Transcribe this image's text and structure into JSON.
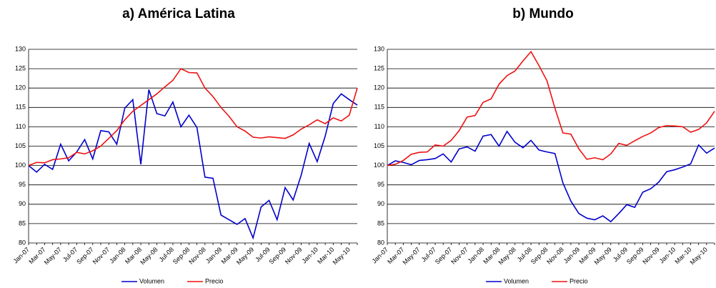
{
  "chart_data": [
    {
      "type": "line",
      "title": "a) América Latina",
      "categories": [
        "Jan-07",
        null,
        "Mar-07",
        null,
        "May-07",
        null,
        "Jul-07",
        null,
        "Sep-07",
        null,
        "Nov-07",
        null,
        "Jan-08",
        null,
        "Mar-08",
        null,
        "May-08",
        null,
        "Jul-08",
        null,
        "Sep-08",
        null,
        "Nov-08",
        null,
        "Jan-09",
        null,
        "Mar-09",
        null,
        "May-09",
        null,
        "Jul-09",
        null,
        "Sep-09",
        null,
        "Nov-09",
        null,
        "Jan-10",
        null,
        "Mar-10",
        null,
        "May-10",
        null
      ],
      "series": [
        {
          "name": "Volumen",
          "color": "#0000cc",
          "values": [
            100,
            98.3,
            100.3,
            99,
            105.5,
            101.2,
            103.5,
            106.7,
            101.7,
            109,
            108.7,
            105.5,
            114.8,
            117,
            100.3,
            119.6,
            113.4,
            112.8,
            116.4,
            110,
            113,
            109.8,
            97,
            96.7,
            87.2,
            86,
            84.8,
            86.3,
            81.3,
            89.3,
            91,
            86,
            94.3,
            91.1,
            97.5,
            105.7,
            101,
            107.6,
            116,
            118.5,
            117,
            115.6
          ]
        },
        {
          "name": "Precio",
          "color": "#ee1111",
          "values": [
            100,
            100.8,
            100.7,
            101.5,
            101.7,
            102,
            103.4,
            103,
            103.8,
            105,
            107,
            109,
            111.8,
            114,
            115.5,
            117,
            118.5,
            120.3,
            122,
            125,
            124,
            123.9,
            120,
            117.8,
            115,
            112.7,
            110,
            108.9,
            107.3,
            107.1,
            107.4,
            107.2,
            107,
            107.9,
            109.4,
            110.5,
            111.8,
            110.8,
            112.3,
            111.5,
            113,
            120
          ]
        }
      ],
      "ylim": [
        80,
        130
      ],
      "yticks": [
        80,
        85,
        90,
        95,
        100,
        105,
        110,
        115,
        120,
        125,
        130
      ],
      "grid": true,
      "legend": "bottom"
    },
    {
      "type": "line",
      "title": "b) Mundo",
      "categories": [
        "Jan-07",
        null,
        "Mar-07",
        null,
        "May-07",
        null,
        "Jul-07",
        null,
        "Sep-07",
        null,
        "Nov-07",
        null,
        "Jan-08",
        null,
        "Mar-08",
        null,
        "May-08",
        null,
        "Jul-08",
        null,
        "Sep-08",
        null,
        "Nov-08",
        null,
        "Jan-09",
        null,
        "Mar-09",
        null,
        "May-09",
        null,
        "Jul-09",
        null,
        "Sep-09",
        null,
        "Nov-09",
        null,
        "Jan-10",
        null,
        "Mar-10",
        null,
        "May-10",
        null
      ],
      "series": [
        {
          "name": "Volumen",
          "color": "#0000cc",
          "values": [
            100,
            101.2,
            100.8,
            100.2,
            101.3,
            101.5,
            101.8,
            103,
            100.9,
            104.3,
            104.8,
            103.7,
            107.6,
            108,
            105,
            108.8,
            106,
            104.6,
            106.5,
            104,
            103.5,
            103.1,
            95.5,
            90.8,
            87.6,
            86.4,
            86,
            87,
            85.5,
            87.6,
            89.9,
            89.2,
            93.1,
            94,
            95.7,
            98.4,
            98.9,
            99.6,
            100.4,
            105.3,
            103.2,
            104.5
          ]
        },
        {
          "name": "Precio",
          "color": "#ee1111",
          "values": [
            100,
            100.3,
            101.3,
            102.9,
            103.4,
            103.5,
            105.3,
            105,
            106.5,
            109,
            112.5,
            112.9,
            116.3,
            117.2,
            121,
            123.2,
            124.4,
            127,
            129.4,
            125.8,
            121.9,
            114.8,
            108.4,
            108.1,
            104.3,
            101.6,
            102,
            101.5,
            103,
            105.7,
            105.2,
            106.4,
            107.5,
            108.4,
            109.8,
            110.3,
            110.2,
            110,
            108.6,
            109.3,
            111,
            114
          ]
        }
      ],
      "ylim": [
        80,
        130
      ],
      "yticks": [
        80,
        85,
        90,
        95,
        100,
        105,
        110,
        115,
        120,
        125,
        130
      ],
      "grid": true,
      "legend": "bottom"
    }
  ]
}
